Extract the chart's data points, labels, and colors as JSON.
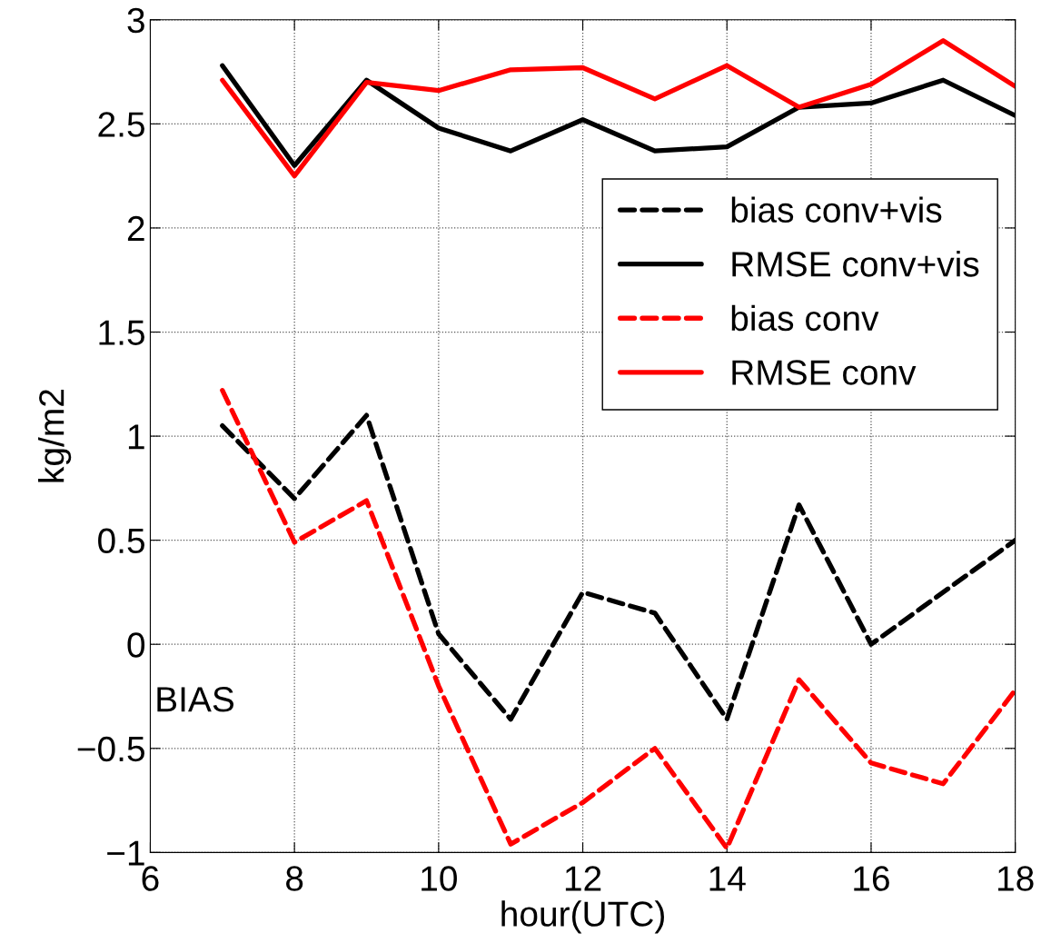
{
  "chart_data": {
    "type": "line",
    "xlabel": "hour(UTC)",
    "ylabel": "kg/m2",
    "x": [
      7,
      8,
      9,
      10,
      11,
      12,
      13,
      14,
      15,
      16,
      17,
      18
    ],
    "series": [
      {
        "name": "bias conv+vis",
        "color": "#000000",
        "line_style": "dashed",
        "values": [
          1.05,
          0.7,
          1.1,
          0.05,
          -0.36,
          0.25,
          0.15,
          -0.36,
          0.67,
          0.0,
          0.25,
          0.5
        ]
      },
      {
        "name": "RMSE conv+vis",
        "color": "#000000",
        "line_style": "solid",
        "values": [
          2.78,
          2.3,
          2.71,
          2.48,
          2.37,
          2.52,
          2.37,
          2.39,
          2.58,
          2.6,
          2.71,
          2.54
        ]
      },
      {
        "name": "bias conv",
        "color": "#ff0000",
        "line_style": "dashed",
        "values": [
          1.22,
          0.49,
          0.69,
          -0.2,
          -0.96,
          -0.76,
          -0.5,
          -0.98,
          -0.17,
          -0.57,
          -0.67,
          -0.22
        ]
      },
      {
        "name": "RMSE conv",
        "color": "#ff0000",
        "line_style": "solid",
        "values": [
          2.71,
          2.25,
          2.7,
          2.66,
          2.76,
          2.77,
          2.62,
          2.78,
          2.58,
          2.69,
          2.9,
          2.68
        ]
      }
    ],
    "xlim": [
      6,
      18
    ],
    "xticks": [
      6,
      8,
      10,
      12,
      14,
      16,
      18
    ],
    "ylim": [
      -1,
      3
    ],
    "yticks": [
      {
        "value": -1,
        "label": "−1"
      },
      {
        "value": -0.5,
        "label": "−0.5"
      },
      0,
      0.5,
      1,
      1.5,
      2,
      2.5,
      3
    ],
    "grid": true,
    "legend": "top right",
    "marker": "none",
    "annotations": [
      "BIAS"
    ]
  }
}
